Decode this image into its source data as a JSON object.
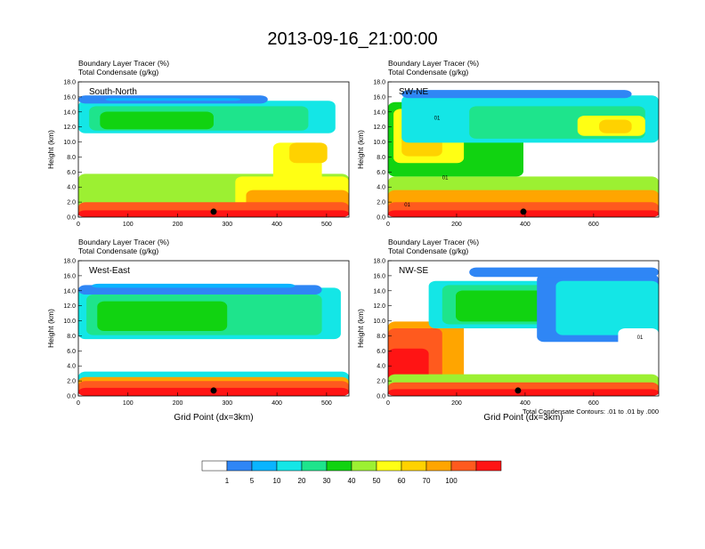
{
  "chart_data": {
    "type": "heatmap",
    "title": "2013-09-16_21:00:00",
    "colorbar": {
      "colors": [
        "#ffffff",
        "#2f86f5",
        "#0ab4ff",
        "#14e6e6",
        "#1ee48c",
        "#11d311",
        "#9cf032",
        "#ffff14",
        "#ffd200",
        "#ffa500",
        "#ff5a1e",
        "#ff1414"
      ],
      "labels": [
        "1",
        "5",
        "10",
        "20",
        "30",
        "40",
        "50",
        "60",
        "70",
        "100"
      ]
    },
    "footnote": "Total Condensate Contours: .01 to .01 by .000",
    "panels": [
      {
        "label": "South-North",
        "subtitle1": "Boundary Layer Tracer   (%)",
        "subtitle2": "Total Condensate   (g/kg)",
        "ylabel": "Height (km)",
        "xlabel": "",
        "xlim": [
          0,
          545
        ],
        "ylim": [
          0,
          18
        ],
        "xticks": [
          "0",
          "100",
          "200",
          "300",
          "400",
          "500"
        ],
        "yticks": [
          "0.0",
          "2.0",
          "4.0",
          "6.0",
          "8.0",
          "10.0",
          "12.0",
          "14.0",
          "16.0",
          "18.0"
        ]
      },
      {
        "label": "SW-NE",
        "subtitle1": "Boundary Layer Tracer   (%)",
        "subtitle2": "Total Condensate   (g/kg)",
        "ylabel": "Height (km)",
        "xlabel": "",
        "xlim": [
          0,
          790
        ],
        "ylim": [
          0,
          18
        ],
        "xticks": [
          "0",
          "200",
          "400",
          "600"
        ],
        "yticks": [
          "0.0",
          "2.0",
          "4.0",
          "6.0",
          "8.0",
          "10.0",
          "12.0",
          "14.0",
          "16.0",
          "18.0"
        ],
        "contour_labels": [
          "01",
          "01",
          "01"
        ]
      },
      {
        "label": "West-East",
        "subtitle1": "Boundary Layer Tracer   (%)",
        "subtitle2": "Total Condensate   (g/kg)",
        "ylabel": "Height (km)",
        "xlabel": "Grid Point (dx=3km)",
        "xlim": [
          0,
          545
        ],
        "ylim": [
          0,
          18
        ],
        "xticks": [
          "0",
          "100",
          "200",
          "300",
          "400",
          "500"
        ],
        "yticks": [
          "0.0",
          "2.0",
          "4.0",
          "6.0",
          "8.0",
          "10.0",
          "12.0",
          "14.0",
          "16.0",
          "18.0"
        ]
      },
      {
        "label": "NW-SE",
        "subtitle1": "Boundary Layer Tracer   (%)",
        "subtitle2": "Total Condensate   (g/kg)",
        "ylabel": "Height (km)",
        "xlabel": "Grid Point (dx=3km)",
        "xlim": [
          0,
          790
        ],
        "ylim": [
          0,
          18
        ],
        "xticks": [
          "0",
          "200",
          "400",
          "600"
        ],
        "yticks": [
          "0.0",
          "2.0",
          "4.0",
          "6.0",
          "8.0",
          "10.0",
          "12.0",
          "14.0",
          "16.0",
          "18.0"
        ],
        "contour_labels": [
          "01"
        ]
      }
    ]
  }
}
